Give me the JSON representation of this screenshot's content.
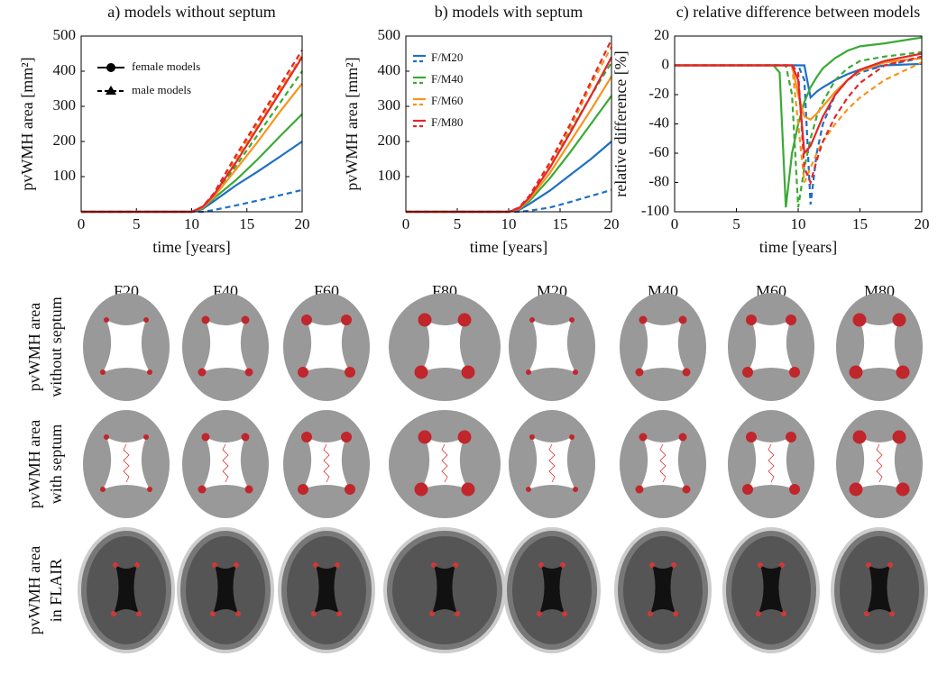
{
  "chart_data": [
    {
      "type": "line",
      "title": "a) models without septum",
      "xlabel": "time [years]",
      "ylabel": "pvWMH area [mm²]",
      "x": [
        0,
        10,
        11,
        12,
        14,
        16,
        18,
        20
      ],
      "xlim": [
        0,
        20
      ],
      "xticks": [
        0,
        5,
        10,
        15,
        20
      ],
      "ylim": [
        0,
        500
      ],
      "yticks": [
        100,
        200,
        300,
        400,
        500
      ],
      "legend": [
        "female models",
        "male models"
      ],
      "series": [
        {
          "color": "#1f6fc4",
          "female": [
            0,
            0,
            8,
            30,
            75,
            115,
            157,
            200
          ],
          "male": [
            0,
            0,
            0,
            5,
            18,
            32,
            47,
            62
          ]
        },
        {
          "color": "#3aaa35",
          "female": [
            0,
            0,
            10,
            38,
            90,
            150,
            215,
            278
          ],
          "male": [
            0,
            0,
            12,
            45,
            130,
            220,
            310,
            400
          ]
        },
        {
          "color": "#f7941d",
          "female": [
            0,
            0,
            12,
            42,
            120,
            200,
            285,
            365
          ],
          "male": [
            0,
            0,
            14,
            50,
            150,
            250,
            350,
            445
          ]
        },
        {
          "color": "#e3262b",
          "female": [
            0,
            0,
            14,
            48,
            140,
            240,
            340,
            440
          ],
          "male": [
            0,
            0,
            15,
            52,
            160,
            260,
            360,
            460
          ]
        }
      ]
    },
    {
      "type": "line",
      "title": "b) models with septum",
      "xlabel": "time [years]",
      "ylabel": "pvWMH area [mm²]",
      "x": [
        0,
        10,
        11,
        12,
        14,
        16,
        18,
        20
      ],
      "xlim": [
        0,
        20
      ],
      "xticks": [
        0,
        5,
        10,
        15,
        20
      ],
      "ylim": [
        0,
        500
      ],
      "yticks": [
        100,
        200,
        300,
        400,
        500
      ],
      "series": [
        {
          "name": "F/M20",
          "color": "#1f6fc4",
          "female": [
            0,
            0,
            5,
            22,
            60,
            105,
            150,
            200
          ],
          "male": [
            0,
            0,
            0,
            3,
            12,
            28,
            45,
            62
          ]
        },
        {
          "name": "F/M40",
          "color": "#3aaa35",
          "female": [
            0,
            0,
            8,
            30,
            95,
            170,
            250,
            330
          ],
          "male": [
            0,
            0,
            10,
            40,
            130,
            230,
            330,
            425
          ]
        },
        {
          "name": "F/M60",
          "color": "#f7941d",
          "female": [
            0,
            0,
            8,
            35,
            110,
            200,
            290,
            385
          ],
          "male": [
            0,
            0,
            10,
            40,
            135,
            240,
            360,
            470
          ]
        },
        {
          "name": "F/M80",
          "color": "#e3262b",
          "female": [
            0,
            0,
            10,
            40,
            125,
            225,
            330,
            440
          ],
          "male": [
            0,
            0,
            12,
            45,
            140,
            250,
            370,
            490
          ]
        }
      ]
    },
    {
      "type": "line",
      "title": "c) relative difference between models",
      "xlabel": "time [years]",
      "ylabel": "relative difference [%]",
      "x": [
        0,
        8,
        8.5,
        9,
        9.5,
        10,
        10.5,
        11,
        11.5,
        12,
        13,
        14,
        15,
        17,
        20
      ],
      "xlim": [
        0,
        20
      ],
      "xticks": [
        0,
        5,
        10,
        15,
        20
      ],
      "ylim": [
        -100,
        20
      ],
      "yticks": [
        -100,
        -80,
        -60,
        -40,
        -20,
        0,
        20
      ],
      "series": [
        {
          "color": "#1f6fc4",
          "female": [
            0,
            0,
            0,
            0,
            0,
            0,
            0,
            -22,
            -18,
            -15,
            -10,
            -6,
            -3,
            0,
            1
          ],
          "male": [
            0,
            0,
            0,
            0,
            0,
            0,
            -10,
            -95,
            -60,
            -40,
            -20,
            -10,
            -5,
            0,
            5
          ]
        },
        {
          "color": "#3aaa35",
          "female": [
            0,
            0,
            -5,
            -97,
            -60,
            -40,
            -25,
            -15,
            -8,
            -2,
            5,
            10,
            13,
            15,
            19
          ],
          "male": [
            0,
            0,
            0,
            0,
            -20,
            -97,
            -70,
            -50,
            -35,
            -25,
            -10,
            -2,
            3,
            6,
            9
          ]
        },
        {
          "color": "#f7941d",
          "female": [
            0,
            0,
            0,
            0,
            0,
            -20,
            -35,
            -37,
            -33,
            -28,
            -18,
            -10,
            -4,
            2,
            5
          ],
          "male": [
            0,
            0,
            0,
            0,
            0,
            -40,
            -80,
            -70,
            -60,
            -52,
            -40,
            -30,
            -22,
            -10,
            2
          ]
        },
        {
          "color": "#e3262b",
          "female": [
            0,
            0,
            0,
            0,
            0,
            -10,
            -60,
            -55,
            -45,
            -35,
            -20,
            -10,
            -3,
            3,
            8
          ],
          "male": [
            0,
            0,
            0,
            0,
            0,
            -5,
            -70,
            -80,
            -65,
            -52,
            -35,
            -22,
            -12,
            0,
            6
          ]
        }
      ]
    }
  ],
  "grid": {
    "columns": [
      "F20",
      "F40",
      "F60",
      "F80",
      "M20",
      "M40",
      "M60",
      "M80"
    ],
    "rows": [
      [
        "pvWMH area",
        "without septum"
      ],
      [
        "pvWMH area",
        "with septum"
      ],
      [
        "pvWMH area",
        "in FLAIR"
      ]
    ]
  }
}
